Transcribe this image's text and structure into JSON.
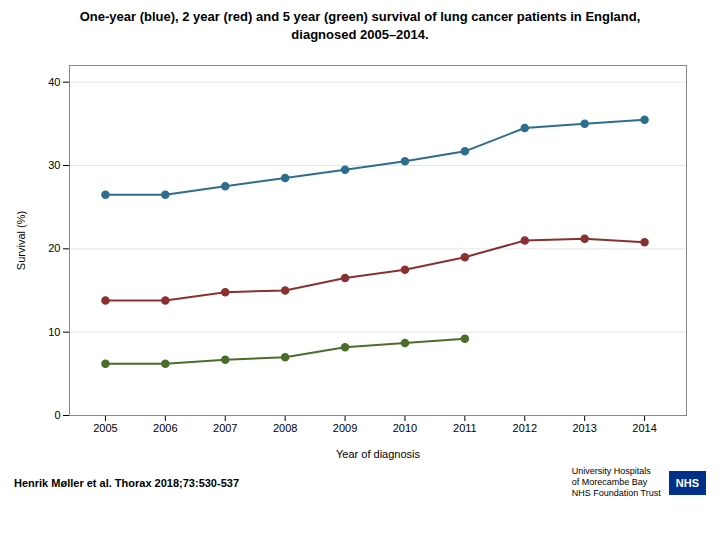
{
  "chart_data": {
    "type": "line",
    "title": "One-year (blue), 2 year (red) and 5 year (green) survival of lung cancer patients in England,",
    "subtitle": "diagnosed 2005–2014.",
    "xlabel": "Year of diagnosis",
    "ylabel": "Survival (%)",
    "annotations": [
      "Henrik Møller et al. Thorax 2018;73:530-537",
      "University Hospitals",
      "of Morecambe Bay",
      "NHS Foundation Trust",
      "NHS"
    ],
    "x": [
      2005,
      2006,
      2007,
      2008,
      2009,
      2010,
      2011,
      2012,
      2013,
      2014
    ],
    "series": [
      {
        "color": "#2e6d8e",
        "values": [
          26.5,
          26.5,
          27.5,
          28.5,
          29.5,
          30.5,
          31.7,
          34.5,
          35.0,
          35.5
        ]
      },
      {
        "color": "#8b3030",
        "values": [
          13.8,
          13.8,
          14.8,
          15.0,
          16.5,
          17.5,
          19.0,
          21.0,
          21.2,
          20.8
        ]
      },
      {
        "color": "#4a6e2a",
        "values": [
          6.2,
          6.2,
          6.7,
          7.0,
          8.2,
          8.7,
          9.2,
          null,
          null,
          null
        ]
      }
    ],
    "xlim": [
      2004.4,
      2014.7
    ],
    "xticks": [
      2005,
      2006,
      2007,
      2008,
      2009,
      2010,
      2011,
      2012,
      2013,
      2014
    ],
    "ylim": [
      0,
      42
    ],
    "yticks": [
      0,
      10,
      20,
      30,
      40
    ],
    "grid": "y",
    "marker": "circle"
  }
}
